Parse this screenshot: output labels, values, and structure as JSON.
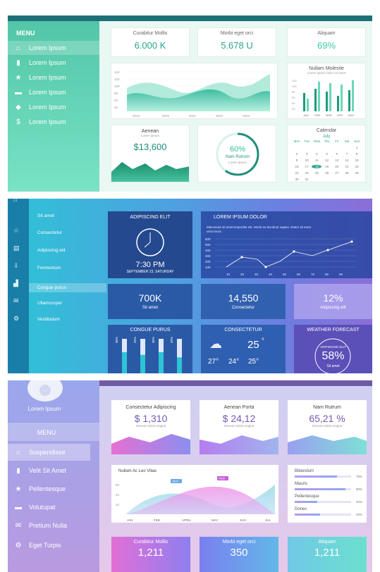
{
  "panel1": {
    "menu_title": "MENU",
    "menu": [
      "Lorem Ipsum",
      "Lorem Ipsum",
      "Lorem Ipsum",
      "Lorem Ipsum",
      "Lorem Ipsum",
      "Lorem Ipsum"
    ],
    "menu_icons": [
      "home-icon",
      "bar-chart-icon",
      "star-icon",
      "chat-icon",
      "graduation-cap-icon",
      "dollar-icon"
    ],
    "stats": [
      {
        "label": "Curabitur Mollis",
        "value": "6.000 K"
      },
      {
        "label": "Morbi eget orci",
        "value": "5.678 U"
      },
      {
        "label": "Aliquam",
        "value": "69%"
      }
    ],
    "area_chart_years": [
      "2019",
      "2020",
      "2021",
      "2022",
      "2023"
    ],
    "area_chart_yticks": [
      "140",
      "120",
      "100",
      "80",
      "60",
      "40",
      "20"
    ],
    "bar_card": {
      "title": "Nullam Molestie",
      "subtitle": "Lorem ipsum dolor sit amet",
      "months": [
        "JAN",
        "FEB",
        "MAR",
        "APR",
        "MAY"
      ],
      "yticks": [
        "120",
        "100",
        "80",
        "60",
        "40",
        "20"
      ]
    },
    "aenean": {
      "title": "Aenean",
      "subtitle": "Lorem ipsum",
      "value": "$13,600"
    },
    "donut": {
      "value": "60%",
      "label": "Nam Rutrum",
      "sub": "Lorem ipsum",
      "percent": 60
    },
    "calendar": {
      "title": "Calendar",
      "month": "July",
      "days": [
        "Mon",
        "Tue",
        "Wed",
        "Thu",
        "Fri",
        "Sat",
        "Sun"
      ],
      "rows": [
        [
          "",
          "",
          "",
          "",
          "",
          "",
          "1"
        ],
        [
          "2",
          "3",
          "4",
          "5",
          "6",
          "7",
          "8"
        ],
        [
          "9",
          "10",
          "11",
          "12",
          "13",
          "14",
          "15"
        ],
        [
          "16",
          "17",
          "18",
          "19",
          "20",
          "21",
          "22"
        ],
        [
          "23",
          "24",
          "25",
          "26",
          "27",
          "28",
          "29"
        ],
        [
          "30",
          "31",
          "",
          "",
          "",
          "",
          ""
        ]
      ],
      "highlight": "18"
    }
  },
  "panel2": {
    "menu": [
      "Sit amet",
      "Consectetur",
      "Adipiscing elit",
      "Fermentum",
      "Congue purus",
      "Ullamcorper",
      "Vestibulum"
    ],
    "menu_icons": [
      "home-icon",
      "star-icon",
      "document-icon",
      "inbox-icon",
      "chart-icon",
      "mail-icon",
      "gear-icon"
    ],
    "clock": {
      "title": "ADIPISCING ELIT",
      "time": "7:30 PM",
      "date": "SEPTEMBER 23, SATURDAY"
    },
    "line": {
      "title": "LOREM IPSUM DOLOR",
      "text": "Maecenas sit amet imperdiet elit. Morbi eu tincidunt sapien. Etiam sit amet urna lacus.",
      "yticks": [
        "600",
        "500",
        "400",
        "300",
        "200",
        "100"
      ],
      "xticks": [
        "10",
        "20",
        "30",
        "40",
        "50",
        "60",
        "70",
        "80",
        "90"
      ]
    },
    "tiles": [
      {
        "value": "700K",
        "label": "Sit amet"
      },
      {
        "value": "14,550",
        "label": "Consectetur"
      },
      {
        "value": "12%",
        "label": "Adipiscing elit"
      }
    ],
    "congue": {
      "title": "CONGUE PURUS",
      "bars": [
        "30%",
        "25%",
        "30%",
        "20%"
      ],
      "fills": [
        30,
        25,
        30,
        20
      ]
    },
    "consectetur": {
      "title": "CONSECTETUR",
      "temp": "25",
      "deg": "°",
      "mini": [
        "27°",
        "24°",
        "25°"
      ]
    },
    "weather": {
      "title": "WEATHER FORECAST",
      "label": "ADIPISCING ELIT",
      "value": "58%",
      "sub": "Sit amet"
    }
  },
  "panel3": {
    "user": "Lorem Ipsum",
    "menu_title": "MENU",
    "menu": [
      "Suspendisse",
      "Velit Sit Amet",
      "Pellentesque",
      "Volutupat",
      "Pretium Nulla",
      "Eget Turpis"
    ],
    "menu_icons": [
      "home-icon",
      "bar-chart-icon",
      "star-icon",
      "chat-icon",
      "mail-icon",
      "gear-icon"
    ],
    "stats": [
      {
        "label": "Consectetur Adipiscing",
        "value": "$ 1,310",
        "sub": "Nuncat malsa magna"
      },
      {
        "label": "Aenean Porta",
        "value": "$ 24,12",
        "sub": "Nuncat malsa magna"
      },
      {
        "label": "Nam Rutrum",
        "value": "65,21 %",
        "sub": "Nuncat malsa magna"
      }
    ],
    "wave": {
      "title": "Nullam Ac Leo Vitae",
      "months": [
        "JAN",
        "FEB",
        "APRIL",
        "MAY",
        "JUN",
        "JUL"
      ],
      "yticks": [
        "60",
        "40",
        "20"
      ],
      "tags": [
        "4500",
        "4500"
      ]
    },
    "progress": [
      {
        "label": "Bibendum",
        "value": "75%",
        "pct": 75
      },
      {
        "label": "Mauris",
        "value": "90%",
        "pct": 90
      },
      {
        "label": "Pellentesque",
        "value": "40%",
        "pct": 40
      },
      {
        "label": "Donec",
        "value": "45%",
        "pct": 45
      }
    ],
    "bottom": [
      {
        "label": "Curabitur Mollis",
        "value": "1,211"
      },
      {
        "label": "Morbi eget orci",
        "value": "350"
      },
      {
        "label": "Aliquam",
        "value": "1,211"
      }
    ]
  }
}
